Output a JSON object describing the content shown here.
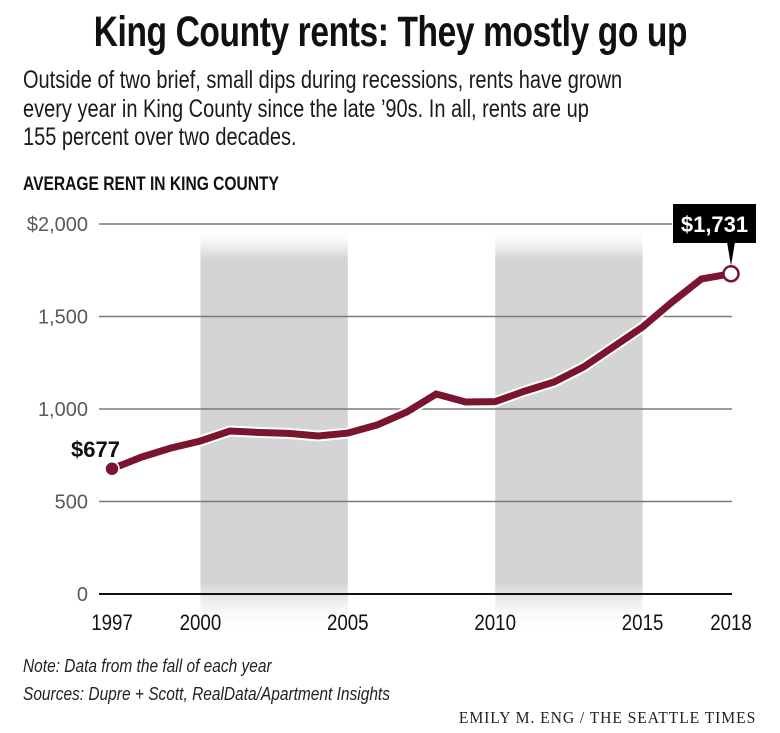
{
  "headline": "King County rents: They mostly go up",
  "dek_lines": [
    "Outside of two brief, small dips during recessions, rents have grown",
    "every year in King County since the late ’90s. In all, rents are up",
    "155 percent over two decades."
  ],
  "chart_label": "AVERAGE RENT IN KING COUNTY",
  "notes": {
    "note": "Note: Data from the fall of each year",
    "sources": "Sources: Dupre + Scott, RealData/Apartment Insights"
  },
  "credit": "EMILY M. ENG / THE SEATTLE TIMES",
  "colors": {
    "line": "#7a1530",
    "shade": "#d4d4d4",
    "grid": "#7a7a7a",
    "axis": "#111111",
    "label_box": "#000000"
  },
  "chart_data": {
    "type": "line",
    "title": "AVERAGE RENT IN KING COUNTY",
    "xlabel": "",
    "ylabel": "",
    "x": [
      1997,
      1998,
      1999,
      2000,
      2001,
      2002,
      2003,
      2004,
      2005,
      2006,
      2007,
      2008,
      2009,
      2010,
      2011,
      2012,
      2013,
      2014,
      2015,
      2016,
      2017,
      2018
    ],
    "series": [
      {
        "name": "Average rent",
        "values": [
          677,
          740,
          789,
          827,
          881,
          873,
          868,
          854,
          870,
          914,
          984,
          1081,
          1038,
          1040,
          1097,
          1146,
          1227,
          1335,
          1443,
          1578,
          1703,
          1731
        ]
      }
    ],
    "xlim": [
      1997,
      2018
    ],
    "ylim": [
      0,
      2000
    ],
    "x_ticks": [
      1997,
      2000,
      2005,
      2010,
      2015,
      2018
    ],
    "x_tick_labels": [
      "1997",
      "2000",
      "2005",
      "2010",
      "2015",
      "2018"
    ],
    "y_ticks": [
      0,
      500,
      1000,
      1500,
      2000
    ],
    "y_tick_labels": [
      "0",
      "500",
      "1,000",
      "1,500",
      "$2,000"
    ],
    "grid": true,
    "shaded_periods": [
      {
        "label": "recession",
        "start": 2000,
        "end": 2005
      },
      {
        "label": "recession",
        "start": 2010,
        "end": 2015
      }
    ],
    "annotations": [
      {
        "x": 1997,
        "y": 677,
        "text": "$677",
        "style": "plain"
      },
      {
        "x": 2018,
        "y": 1731,
        "text": "$1,731",
        "style": "boxed"
      }
    ],
    "legend": "none"
  }
}
